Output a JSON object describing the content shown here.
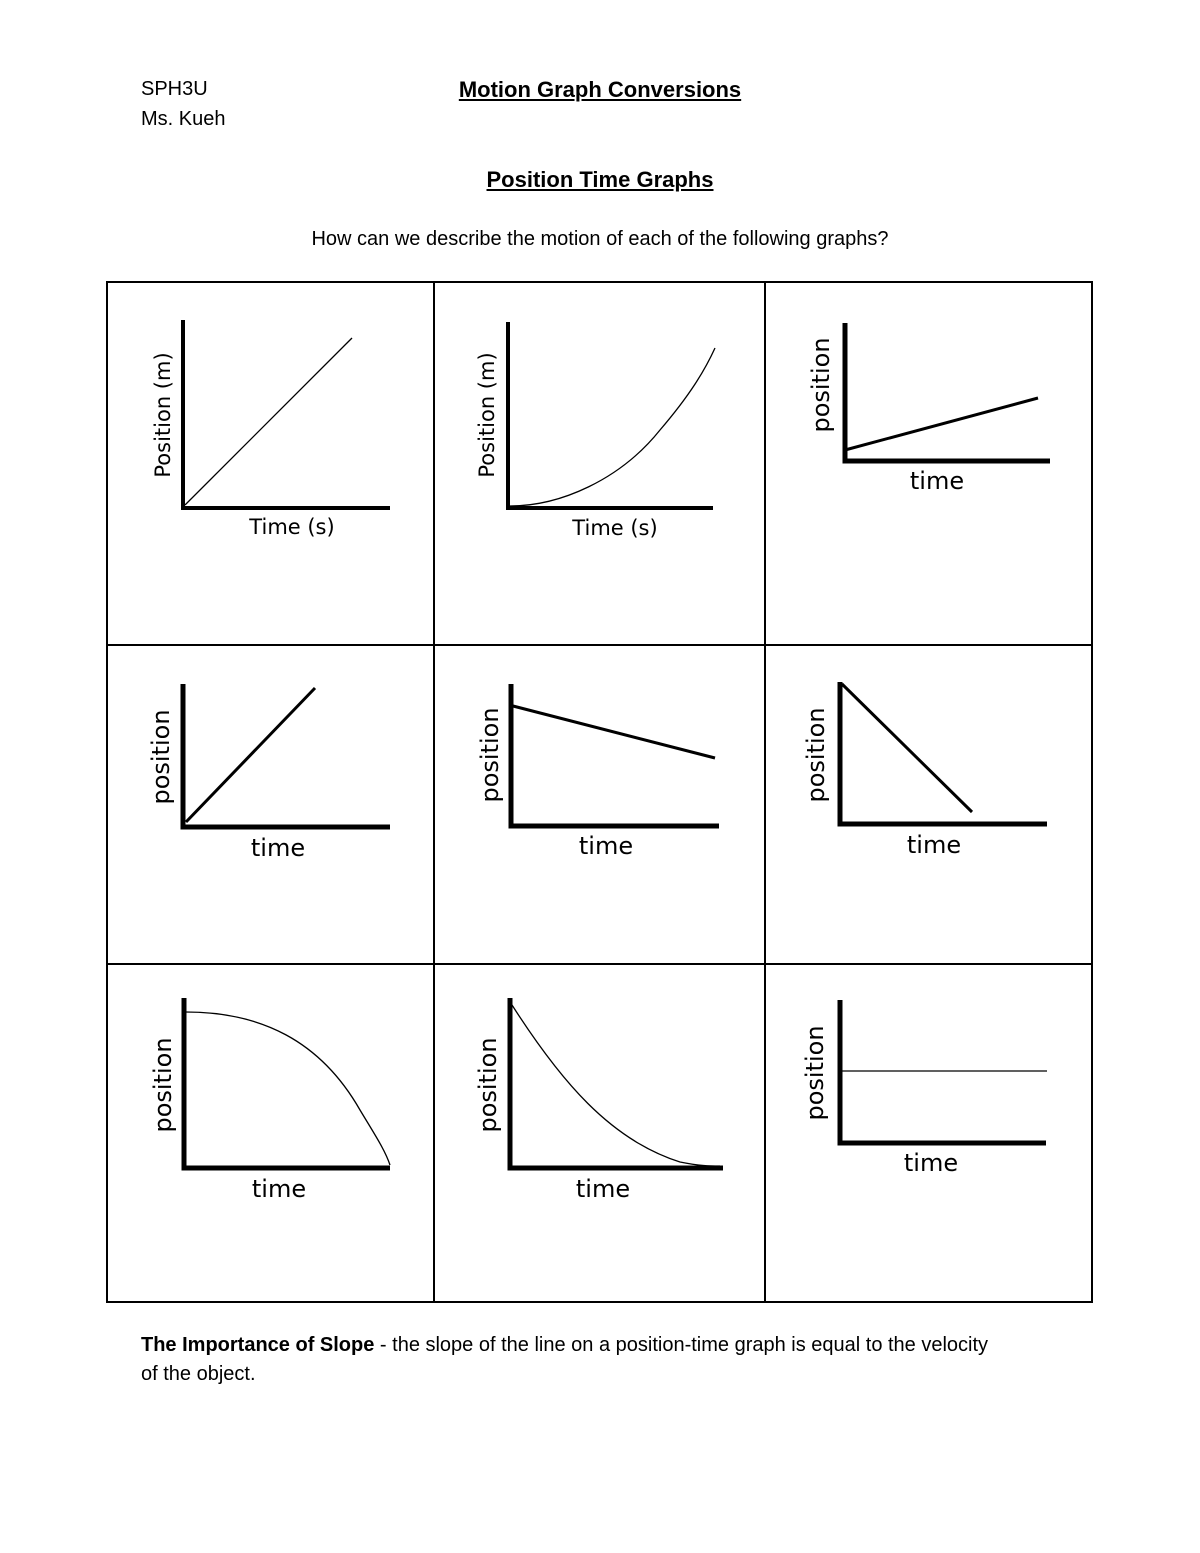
{
  "header": {
    "course": "SPH3U",
    "teacher": "Ms. Kueh",
    "title": "Motion Graph Conversions"
  },
  "section": {
    "title": "Position Time Graphs",
    "question": "How can we describe the motion of each of the following graphs?"
  },
  "graphs": [
    {
      "ylabel": "Position (m)",
      "xlabel": "Time (s)"
    },
    {
      "ylabel": "Position (m)",
      "xlabel": "Time (s)"
    },
    {
      "ylabel": "position",
      "xlabel": "time"
    },
    {
      "ylabel": "position",
      "xlabel": "time"
    },
    {
      "ylabel": "position",
      "xlabel": "time"
    },
    {
      "ylabel": "position",
      "xlabel": "time"
    },
    {
      "ylabel": "position",
      "xlabel": "time"
    },
    {
      "ylabel": "position",
      "xlabel": "time"
    },
    {
      "ylabel": "position",
      "xlabel": "time"
    }
  ],
  "slope_note": {
    "heading": "The Importance of Slope",
    "text_line1": " - the slope of the line on a position-time graph is equal to the velocity",
    "text_line2": "of the object."
  }
}
